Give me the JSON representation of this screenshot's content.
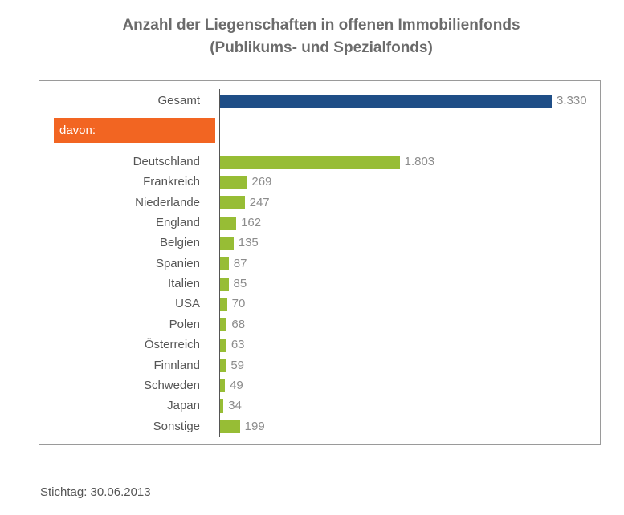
{
  "title_line1": "Anzahl der Liegenschaften in offenen Immobilienfonds",
  "title_line2": "(Publikums- und Spezialfonds)",
  "davon_label": "davon:",
  "footer": "Stichtag: 30.06.2013",
  "colors": {
    "total_bar": "#1f4e87",
    "country_bar": "#97bd35",
    "davon_box": "#f26522"
  },
  "chart_data": {
    "type": "bar",
    "orientation": "horizontal",
    "title": "Anzahl der Liegenschaften in offenen Immobilienfonds (Publikums- und Spezialfonds)",
    "categories": [
      "Gesamt",
      "Deutschland",
      "Frankreich",
      "Niederlande",
      "England",
      "Belgien",
      "Spanien",
      "Italien",
      "USA",
      "Polen",
      "Österreich",
      "Finnland",
      "Schweden",
      "Japan",
      "Sonstige"
    ],
    "values": [
      3330,
      1803,
      269,
      247,
      162,
      135,
      87,
      85,
      70,
      68,
      63,
      59,
      49,
      34,
      199
    ],
    "value_labels": [
      "3.330",
      "1.803",
      "269",
      "247",
      "162",
      "135",
      "87",
      "85",
      "70",
      "68",
      "63",
      "59",
      "49",
      "34",
      "199"
    ],
    "xlim": [
      0,
      3330
    ],
    "grid": false,
    "legend": "none"
  }
}
